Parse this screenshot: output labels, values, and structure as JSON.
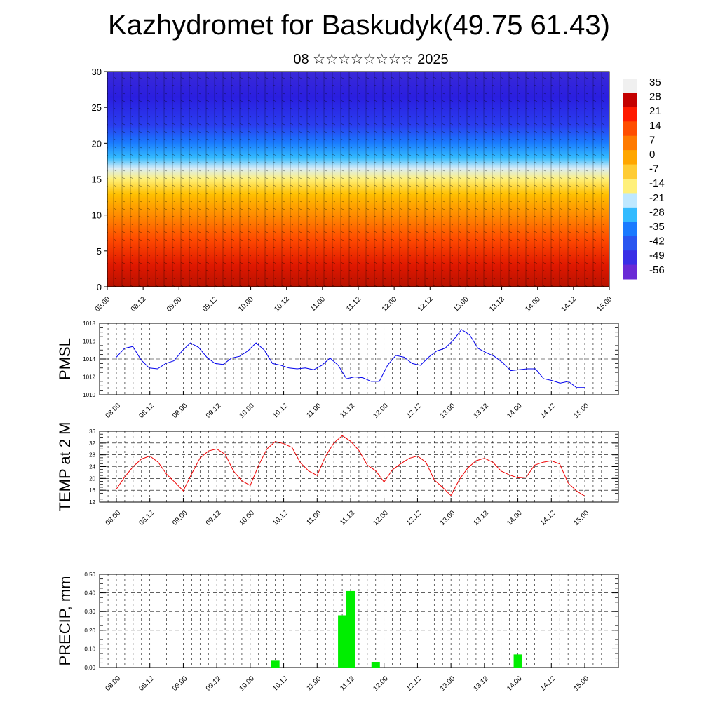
{
  "title": "Kazhydromet for Baskudyk(49.75 61.43)",
  "subtitle": "08 ☆☆☆☆☆☆☆☆ 2025",
  "time_labels": [
    "08.00",
    "08.12",
    "09.00",
    "09.12",
    "10.00",
    "10.12",
    "11.00",
    "11.12",
    "12.00",
    "12.12",
    "13.00",
    "13.12",
    "14.00",
    "14.12",
    "15.00"
  ],
  "chart_data": [
    {
      "type": "heatmap",
      "title": "",
      "ylim": [
        0,
        30
      ],
      "y_ticks": [
        "0",
        "5",
        "10",
        "15",
        "20",
        "25",
        "30"
      ],
      "x_ticks": [
        "08.00",
        "08.12",
        "09.00",
        "09.12",
        "10.00",
        "10.12",
        "11.00",
        "11.12",
        "12.00",
        "12.12",
        "13.00",
        "13.12",
        "14.00",
        "14.12",
        "15.00"
      ],
      "colorbar_labels": [
        "35",
        "28",
        "21",
        "14",
        "7",
        "0",
        "-7",
        "-14",
        "-21",
        "-28",
        "-35",
        "-42",
        "-49",
        "-56"
      ],
      "colorbar_colors": [
        "#f0f0f0",
        "#c30000",
        "#ff1a00",
        "#ff4d00",
        "#ff7a00",
        "#ffa600",
        "#ffcc33",
        "#fff07a",
        "#bfe8ff",
        "#33bbff",
        "#1a7aff",
        "#2a56f0",
        "#3a2ee6",
        "#6a2ad6"
      ],
      "overlay": "wind barbs"
    },
    {
      "type": "line",
      "ylabel": "PMSL",
      "ylim": [
        1010,
        1018
      ],
      "y_ticks": [
        "1010",
        "1012",
        "1014",
        "1016",
        "1018"
      ],
      "x_ticks": [
        "08.00",
        "08.12",
        "09.00",
        "09.12",
        "10.00",
        "10.12",
        "11.00",
        "11.12",
        "12.00",
        "12.12",
        "13.00",
        "13.12",
        "14.00",
        "14.12",
        "15.00"
      ],
      "series": [
        {
          "color": "#0000ee",
          "values": [
            1014.2,
            1015.2,
            1015.4,
            1013.9,
            1013.0,
            1012.9,
            1013.5,
            1013.8,
            1014.9,
            1015.8,
            1015.3,
            1014.2,
            1013.5,
            1013.4,
            1014.1,
            1014.3,
            1014.9,
            1015.8,
            1015.0,
            1013.5,
            1013.3,
            1013.0,
            1012.9,
            1013.0,
            1012.8,
            1013.3,
            1014.1,
            1013.3,
            1011.8,
            1012.0,
            1011.9,
            1011.5,
            1011.5,
            1013.3,
            1014.4,
            1014.2,
            1013.5,
            1013.3,
            1014.2,
            1014.9,
            1015.2,
            1016.1,
            1017.3,
            1016.7,
            1015.2,
            1014.7,
            1014.3,
            1013.6,
            1012.7,
            1012.8,
            1012.9,
            1012.9,
            1011.8,
            1011.6,
            1011.3,
            1011.5,
            1010.8,
            1010.8
          ]
        }
      ]
    },
    {
      "type": "line",
      "ylabel": "TEMP at 2 M",
      "ylim": [
        12,
        36
      ],
      "y_ticks": [
        "12",
        "16",
        "20",
        "24",
        "28",
        "32",
        "36"
      ],
      "x_ticks": [
        "08.00",
        "08.12",
        "09.00",
        "09.12",
        "10.00",
        "10.12",
        "11.00",
        "11.12",
        "12.00",
        "12.12",
        "13.00",
        "13.12",
        "14.00",
        "14.12",
        "15.00"
      ],
      "series": [
        {
          "color": "#ee0000",
          "values": [
            16.4,
            20.5,
            24.0,
            26.6,
            27.6,
            25.5,
            21.4,
            18.7,
            15.8,
            21.6,
            26.9,
            29.3,
            30.0,
            28.2,
            22.5,
            19.2,
            17.6,
            24.4,
            30.0,
            32.5,
            31.8,
            30.5,
            25.3,
            22.5,
            21.0,
            27.5,
            32.0,
            34.5,
            32.6,
            29.5,
            24.5,
            22.6,
            18.8,
            22.9,
            25.0,
            26.8,
            27.6,
            25.5,
            19.5,
            17.0,
            14.2,
            19.6,
            23.5,
            26.0,
            26.8,
            25.5,
            22.5,
            21.2,
            20.2,
            20.4,
            24.5,
            25.5,
            26.0,
            24.9,
            18.5,
            15.8,
            14.0
          ]
        }
      ]
    },
    {
      "type": "bar",
      "ylabel": "PRECIP, mm",
      "ylim": [
        0,
        0.5
      ],
      "y_ticks": [
        "0.00",
        "0.10",
        "0.20",
        "0.30",
        "0.40",
        "0.50"
      ],
      "x_ticks": [
        "08.00",
        "08.12",
        "09.00",
        "09.12",
        "10.00",
        "10.12",
        "11.00",
        "11.12",
        "12.00",
        "12.12",
        "13.00",
        "13.12",
        "14.00",
        "14.12",
        "15.00"
      ],
      "series": [
        {
          "color": "#00ee00",
          "bars": [
            {
              "t": 4.75,
              "value": 0.04
            },
            {
              "t": 6.75,
              "value": 0.28
            },
            {
              "t": 7.0,
              "value": 0.41
            },
            {
              "t": 7.75,
              "value": 0.03
            },
            {
              "t": 12.0,
              "value": 0.07
            }
          ]
        }
      ]
    }
  ]
}
